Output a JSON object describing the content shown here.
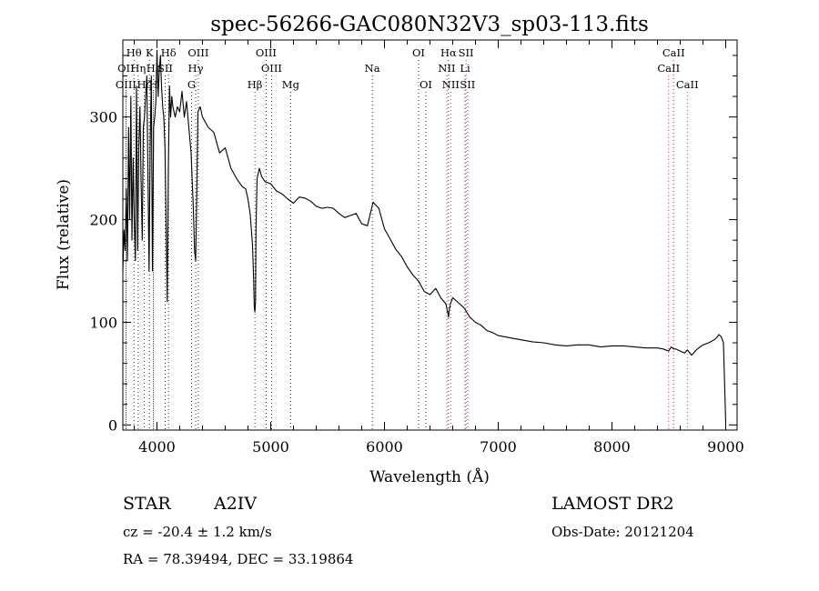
{
  "chart_data": {
    "type": "line",
    "title": "spec-56266-GAC080N32V3_sp03-113.fits",
    "xlabel": "Wavelength (Å)",
    "ylabel": "Flux (relative)",
    "xlim": [
      3700,
      9100
    ],
    "ylim": [
      -5,
      375
    ],
    "x_ticks": [
      4000,
      5000,
      6000,
      7000,
      8000,
      9000
    ],
    "y_ticks": [
      0,
      100,
      200,
      300
    ],
    "grid": false,
    "series": [
      {
        "x": [
          3700,
          3710,
          3720,
          3730,
          3740,
          3750,
          3760,
          3770,
          3780,
          3790,
          3800,
          3810,
          3820,
          3830,
          3840,
          3850,
          3860,
          3870,
          3880,
          3890,
          3900,
          3910,
          3920,
          3930,
          3940,
          3950,
          3960,
          3970,
          3980,
          3990,
          4000,
          4010,
          4020,
          4030,
          4040,
          4050,
          4060,
          4070,
          4080,
          4090,
          4100,
          4110,
          4120,
          4130,
          4140,
          4160,
          4180,
          4200,
          4220,
          4240,
          4260,
          4280,
          4300,
          4320,
          4330,
          4340,
          4350,
          4360,
          4380,
          4400,
          4450,
          4500,
          4550,
          4600,
          4650,
          4700,
          4750,
          4780,
          4800,
          4820,
          4840,
          4850,
          4855,
          4861,
          4866,
          4870,
          4880,
          4900,
          4920,
          4950,
          5000,
          5050,
          5100,
          5150,
          5200,
          5250,
          5300,
          5350,
          5400,
          5450,
          5500,
          5550,
          5600,
          5650,
          5700,
          5750,
          5800,
          5850,
          5900,
          5950,
          6000,
          6050,
          6100,
          6150,
          6200,
          6250,
          6300,
          6350,
          6400,
          6450,
          6500,
          6540,
          6560,
          6563,
          6570,
          6580,
          6600,
          6650,
          6700,
          6750,
          6800,
          6850,
          6900,
          6950,
          7000,
          7100,
          7200,
          7300,
          7400,
          7500,
          7600,
          7700,
          7800,
          7900,
          8000,
          8100,
          8200,
          8300,
          8400,
          8450,
          8498,
          8520,
          8542,
          8560,
          8600,
          8640,
          8662,
          8700,
          8750,
          8800,
          8850,
          8900,
          8920,
          8940,
          8960,
          8980,
          9000
        ],
        "y": [
          150,
          190,
          170,
          230,
          160,
          290,
          200,
          320,
          180,
          260,
          200,
          160,
          330,
          170,
          270,
          310,
          240,
          180,
          290,
          300,
          320,
          340,
          250,
          150,
          270,
          340,
          150,
          290,
          300,
          315,
          365,
          320,
          345,
          360,
          330,
          310,
          300,
          270,
          200,
          120,
          250,
          330,
          300,
          320,
          310,
          300,
          310,
          305,
          325,
          300,
          315,
          290,
          265,
          210,
          170,
          160,
          230,
          305,
          310,
          300,
          290,
          285,
          265,
          270,
          250,
          240,
          232,
          230,
          220,
          205,
          175,
          140,
          115,
          110,
          120,
          190,
          240,
          250,
          242,
          237,
          235,
          228,
          225,
          220,
          216,
          222,
          221,
          218,
          213,
          211,
          212,
          211,
          206,
          202,
          204,
          206,
          196,
          194,
          217,
          211,
          191,
          181,
          171,
          164,
          154,
          146,
          140,
          130,
          127,
          133,
          123,
          118,
          107,
          105,
          113,
          118,
          124,
          119,
          114,
          105,
          100,
          97,
          92,
          90,
          87,
          85,
          83,
          81,
          80,
          78,
          77,
          78,
          78,
          76,
          77,
          77,
          76,
          75,
          75,
          74,
          72,
          76,
          74,
          74,
          72,
          70,
          73,
          68,
          74,
          78,
          80,
          83,
          85,
          88,
          86,
          80,
          2
        ]
      }
    ],
    "line_markers": [
      {
        "label": "Hθ",
        "row": 1,
        "x": 3798
      },
      {
        "label": "K",
        "row": 1,
        "x": 3934
      },
      {
        "label": "Hδ",
        "row": 1,
        "x": 4102
      },
      {
        "label": "OIII",
        "row": 1,
        "x": 4363
      },
      {
        "label": "OIII",
        "row": 1,
        "x": 4959
      },
      {
        "label": "OI",
        "row": 1,
        "x": 6300
      },
      {
        "label": "Hα",
        "row": 1,
        "x": 6563
      },
      {
        "label": "SII",
        "row": 1,
        "x": 6717
      },
      {
        "label": "CaII",
        "row": 1,
        "x": 8542
      },
      {
        "label": "OII",
        "row": 2,
        "x": 3727
      },
      {
        "label": "Hη",
        "row": 2,
        "x": 3835
      },
      {
        "label": "Hε",
        "row": 2,
        "x": 3970
      },
      {
        "label": "SII",
        "row": 2,
        "x": 4072
      },
      {
        "label": "Hγ",
        "row": 2,
        "x": 4340
      },
      {
        "label": "OIII",
        "row": 2,
        "x": 5007
      },
      {
        "label": "Na",
        "row": 2,
        "x": 5893
      },
      {
        "label": "NII",
        "row": 2,
        "x": 6548
      },
      {
        "label": "Li",
        "row": 2,
        "x": 6708
      },
      {
        "label": "CaII",
        "row": 2,
        "x": 8498
      },
      {
        "label": "OIII",
        "row": 3,
        "x": 3727
      },
      {
        "label": "Hζ",
        "row": 3,
        "x": 3889
      },
      {
        "label": "H",
        "row": 3,
        "x": 3968
      },
      {
        "label": "G",
        "row": 3,
        "x": 4304
      },
      {
        "label": "Hβ",
        "row": 3,
        "x": 4861
      },
      {
        "label": "Mg",
        "row": 3,
        "x": 5175
      },
      {
        "label": "OI",
        "row": 3,
        "x": 6364
      },
      {
        "label": "NII",
        "row": 3,
        "x": 6583
      },
      {
        "label": "SII",
        "row": 3,
        "x": 6731
      },
      {
        "label": "CaII",
        "row": 3,
        "x": 8662
      }
    ],
    "marker_colors": {
      "line": "#000000",
      "emission": "#cc0000"
    }
  },
  "footer": {
    "object_class": "STAR",
    "subclass": "A2IV",
    "survey": "LAMOST DR2",
    "cz": "cz = -20.4 ± 1.2 km/s",
    "obs_date": "Obs-Date: 20121204",
    "coords": "RA =  78.39494, DEC =  33.19864"
  }
}
